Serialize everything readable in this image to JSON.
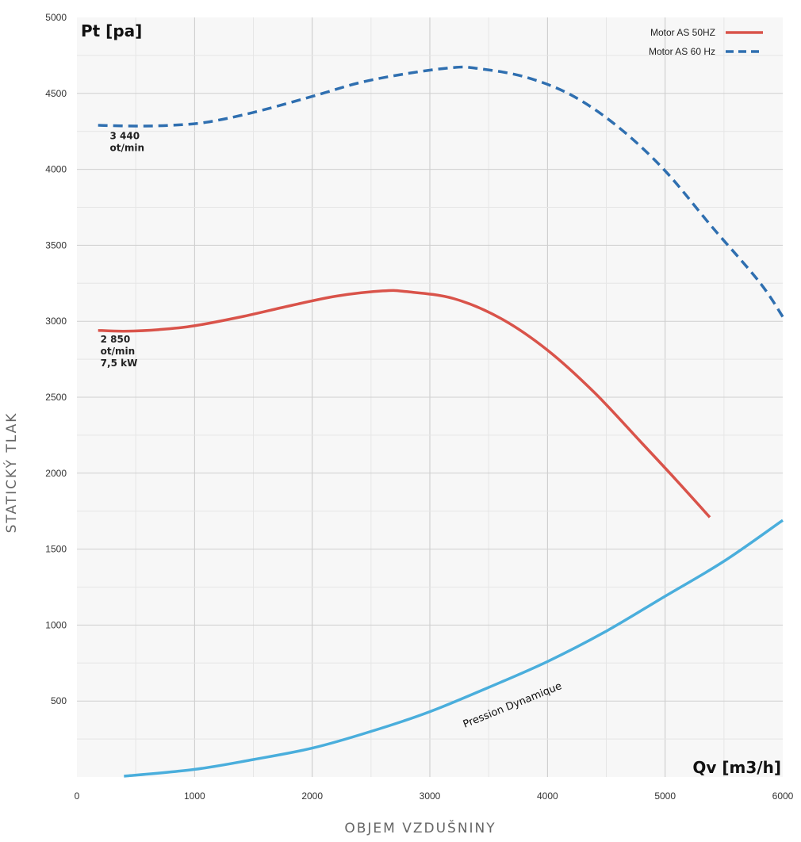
{
  "chart_data": {
    "type": "line",
    "title": "",
    "xlabel": "OBJEM VZDUŠNINY",
    "ylabel": "STATICKÝ TLAK",
    "x_corner_label": "Qv [m3/h]",
    "y_corner_label": "Pt [pa]",
    "xlim": [
      0,
      6000
    ],
    "ylim": [
      0,
      5000
    ],
    "x_ticks": [
      "0",
      "1000",
      "2000",
      "3000",
      "4000",
      "5000",
      "6000"
    ],
    "y_ticks": [
      "500",
      "1000",
      "1500",
      "2000",
      "2500",
      "3000",
      "3500",
      "4000",
      "4500",
      "5000"
    ],
    "grid": true,
    "legend_position": "top-right",
    "series": [
      {
        "name": "Motor AS 50HZ",
        "color": "#d9534a",
        "style": "solid",
        "x": [
          180,
          400,
          700,
          1000,
          1400,
          1800,
          2200,
          2600,
          2800,
          3200,
          3600,
          4000,
          4400,
          4800,
          5100,
          5380
        ],
        "y": [
          2940,
          2935,
          2945,
          2970,
          3030,
          3100,
          3165,
          3200,
          3195,
          3150,
          3020,
          2810,
          2530,
          2200,
          1950,
          1710
        ]
      },
      {
        "name": "Motor AS 60 Hz",
        "color": "#2f6fb0",
        "style": "dashed",
        "x": [
          180,
          500,
          800,
          1100,
          1500,
          2000,
          2400,
          2800,
          3200,
          3400,
          3800,
          4200,
          4600,
          5000,
          5400,
          5800,
          6000
        ],
        "y": [
          4290,
          4285,
          4290,
          4310,
          4375,
          4480,
          4570,
          4630,
          4670,
          4665,
          4610,
          4490,
          4280,
          3990,
          3620,
          3260,
          3030
        ]
      },
      {
        "name": "Pression Dynamique",
        "color": "#4aaedc",
        "style": "solid",
        "x": [
          400,
          1000,
          1500,
          2000,
          2500,
          3000,
          3500,
          4000,
          4500,
          5000,
          5500,
          6000
        ],
        "y": [
          5,
          50,
          115,
          190,
          300,
          430,
          590,
          760,
          960,
          1190,
          1420,
          1690
        ]
      }
    ],
    "annotations": [
      {
        "lines": [
          "3 440",
          "ot/min"
        ],
        "x": 280,
        "y": 4200
      },
      {
        "lines": [
          "2 850",
          "ot/min",
          "7,5 kW"
        ],
        "x": 200,
        "y": 2860
      }
    ]
  }
}
